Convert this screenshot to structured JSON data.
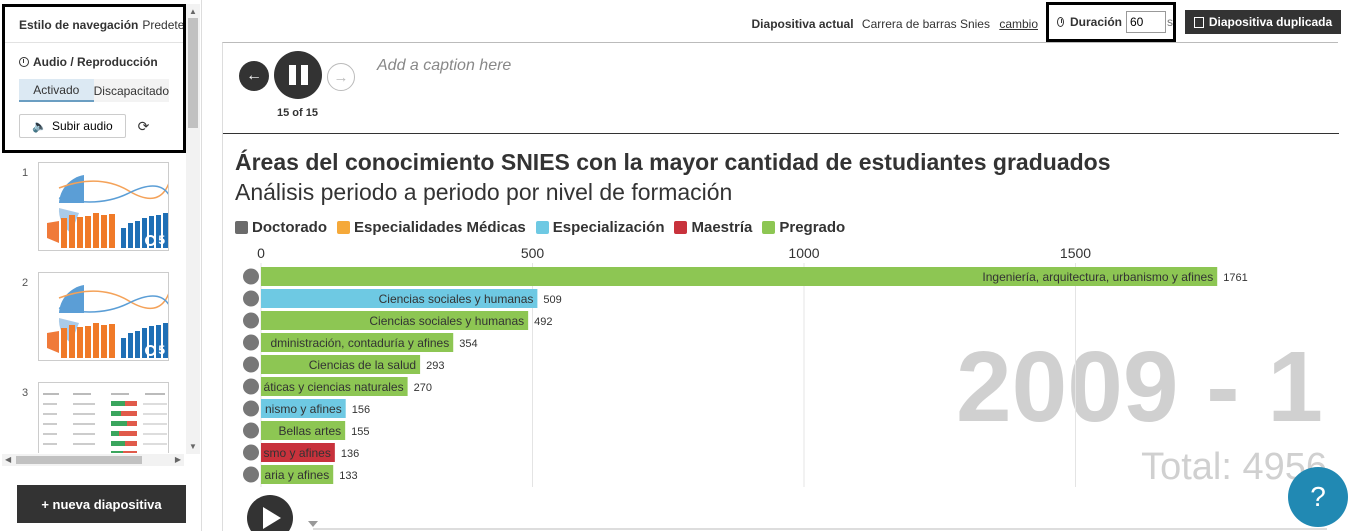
{
  "sidebar": {
    "nav_style_label": "Estilo de navegación",
    "nav_style_value": "Predeterminado",
    "audio_title": "Audio / Reproducción",
    "toggle_on": "Activado",
    "toggle_off": "Discapacitado",
    "upload_label": "Subir audio",
    "new_slide_label": "+ nueva diapositiva",
    "thumbnails": [
      {
        "number": "1",
        "duration": "5"
      },
      {
        "number": "2",
        "duration": "5"
      },
      {
        "number": "3",
        "duration": ""
      }
    ]
  },
  "toolbar": {
    "current_slide_label": "Diapositiva actual",
    "current_slide_value": "Carrera de barras Snies",
    "change_link": "cambio",
    "duration_label": "Duración",
    "duration_value": "60",
    "duration_unit": "s",
    "duplicate_label": "Diapositiva duplicada"
  },
  "player": {
    "counter": "15 of 15",
    "caption_placeholder": "Add a caption here"
  },
  "help_label": "?",
  "colors": {
    "doctorado": "#6b6b6b",
    "especialidades_medicas": "#f5a93a",
    "especializacion": "#6ec9e3",
    "maestria": "#c8323c",
    "pregrado": "#8dc653",
    "year_text": "#d0d0d0"
  },
  "chart_data": {
    "type": "bar",
    "title": "Áreas del conocimiento SNIES con la mayor cantidad de estudiantes graduados",
    "subtitle": "Análisis periodo a periodo por nivel de formación",
    "legend": [
      "Doctorado",
      "Especialidades Médicas",
      "Especialización",
      "Maestría",
      "Pregrado"
    ],
    "x_ticks": [
      0,
      500,
      1000,
      1500
    ],
    "xlim": [
      0,
      1900
    ],
    "period": "2009 - 1",
    "total_label": "Total: 4956",
    "bars": [
      {
        "label": "Ingeniería, arquitectura, urbanismo y afines",
        "value": 1761,
        "category": "Pregrado"
      },
      {
        "label": "Ciencias sociales y humanas",
        "value": 509,
        "category": "Especialización"
      },
      {
        "label": "Ciencias sociales y humanas",
        "value": 492,
        "category": "Pregrado"
      },
      {
        "label": "dministración, contaduría y afines",
        "value": 354,
        "category": "Pregrado"
      },
      {
        "label": "Ciencias de la salud",
        "value": 293,
        "category": "Pregrado"
      },
      {
        "label": "áticas y ciencias naturales",
        "value": 270,
        "category": "Pregrado"
      },
      {
        "label": "nismo y afines",
        "value": 156,
        "category": "Especialización"
      },
      {
        "label": "Bellas artes",
        "value": 155,
        "category": "Pregrado"
      },
      {
        "label": "smo y afines",
        "value": 136,
        "category": "Maestría"
      },
      {
        "label": "aria y afines",
        "value": 133,
        "category": "Pregrado"
      }
    ]
  }
}
